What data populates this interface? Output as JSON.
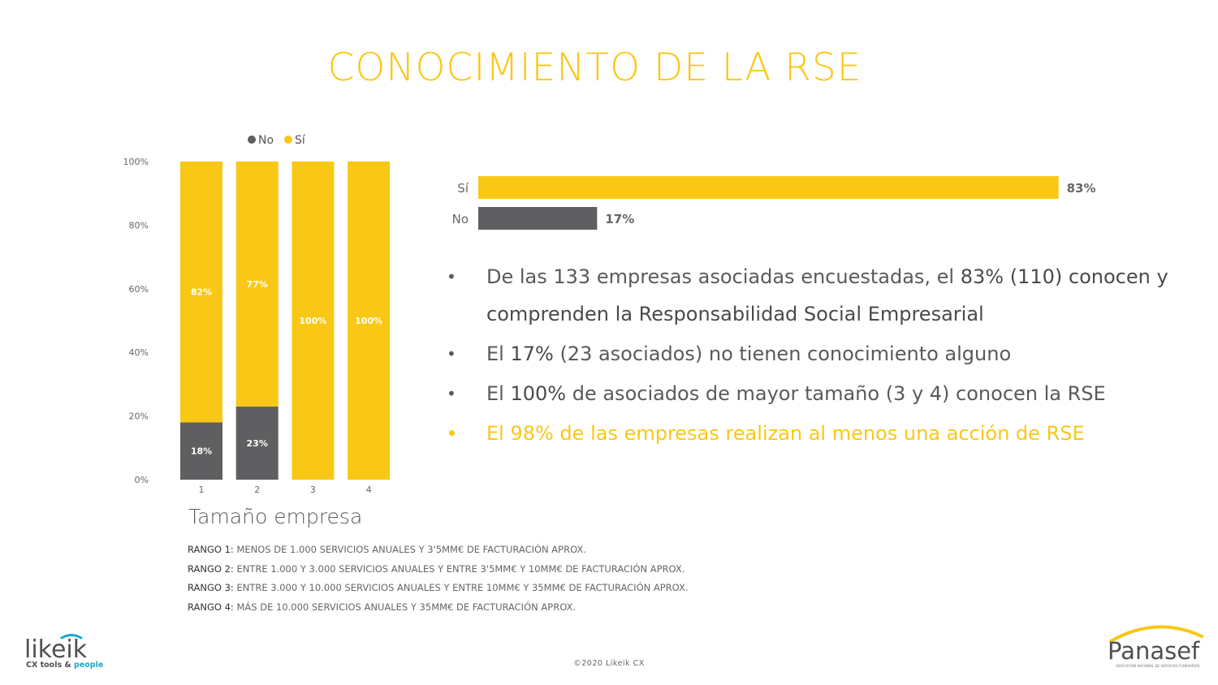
{
  "title": "CONOCIMIENTO DE LA RSE",
  "colors": {
    "accent": "#f9c816",
    "grey": "#5f5e60",
    "text": "#5a5a5a"
  },
  "chart_data": [
    {
      "type": "bar",
      "stacked": true,
      "categories": [
        "1",
        "2",
        "3",
        "4"
      ],
      "series": [
        {
          "name": "No",
          "color": "#5f5e60",
          "values": [
            18,
            23,
            0,
            0
          ],
          "labels": [
            "18%",
            "23%",
            "",
            ""
          ]
        },
        {
          "name": "Sí",
          "color": "#f9c816",
          "values": [
            82,
            77,
            100,
            100
          ],
          "labels": [
            "82%",
            "77%",
            "100%",
            "100%"
          ]
        }
      ],
      "legend": [
        "No",
        "Sí"
      ],
      "legend_position": "top",
      "yticks": [
        "0%",
        "20%",
        "40%",
        "60%",
        "80%",
        "100%"
      ],
      "ylim": [
        0,
        100
      ],
      "xlabel": "Tamaño empresa"
    },
    {
      "type": "bar",
      "orientation": "horizontal",
      "categories": [
        "Sí",
        "No"
      ],
      "values": [
        83,
        17
      ],
      "labels": [
        "83%",
        "17%"
      ],
      "colors": [
        "#f9c816",
        "#5f5e60"
      ]
    }
  ],
  "bullets": [
    {
      "pre": "De las 133 empresas asociadas encuestadas, el ",
      "bold": "83% (110) conocen y comprenden la Responsabilidad Social Empresarial",
      "post": ""
    },
    {
      "pre": "El ",
      "bold": "17%",
      "post": " (23 asociados) no tienen conocimiento alguno"
    },
    {
      "pre": "El ",
      "bold": "100%",
      "post": " de asociados de mayor tamaño (3 y 4) conocen la RSE"
    },
    {
      "pre": "",
      "bold": "El 98% de las empresas realizan al menos una acción de RSE",
      "post": "",
      "highlight": true
    }
  ],
  "size_title": "Tamaño empresa",
  "ranges": [
    {
      "label": "RANGO 1:",
      "desc": " MENOS DE 1.000 SERVICIOS ANUALES Y 3'5MM€ DE FACTURACIÓN APROX."
    },
    {
      "label": "RANGO 2:",
      "desc": " ENTRE 1.000 Y 3.000 SERVICIOS ANUALES Y ENTRE 3'5MM€ Y 10MM€ DE FACTURACIÓN APROX."
    },
    {
      "label": "RANGO 3:",
      "desc": " ENTRE 3.000 Y 10.000 SERVICIOS ANUALES Y ENTRE 10MM€ Y 35MM€ DE FACTURACIÓN APROX."
    },
    {
      "label": "RANGO 4:",
      "desc": " MÁS DE 10.000 SERVICIOS ANUALES Y 35MM€ DE FACTURACIÓN APROX."
    }
  ],
  "footer": "©2020 Likeik CX",
  "logo_left": {
    "name": "likeik",
    "tagline_1": "CX tools",
    "tagline_amp": " & ",
    "tagline_2": "people"
  },
  "logo_right": {
    "name": "Panasef",
    "tagline": "ASOCIACIÓN NACIONAL DE SERVICIOS FUNERARIOS"
  }
}
